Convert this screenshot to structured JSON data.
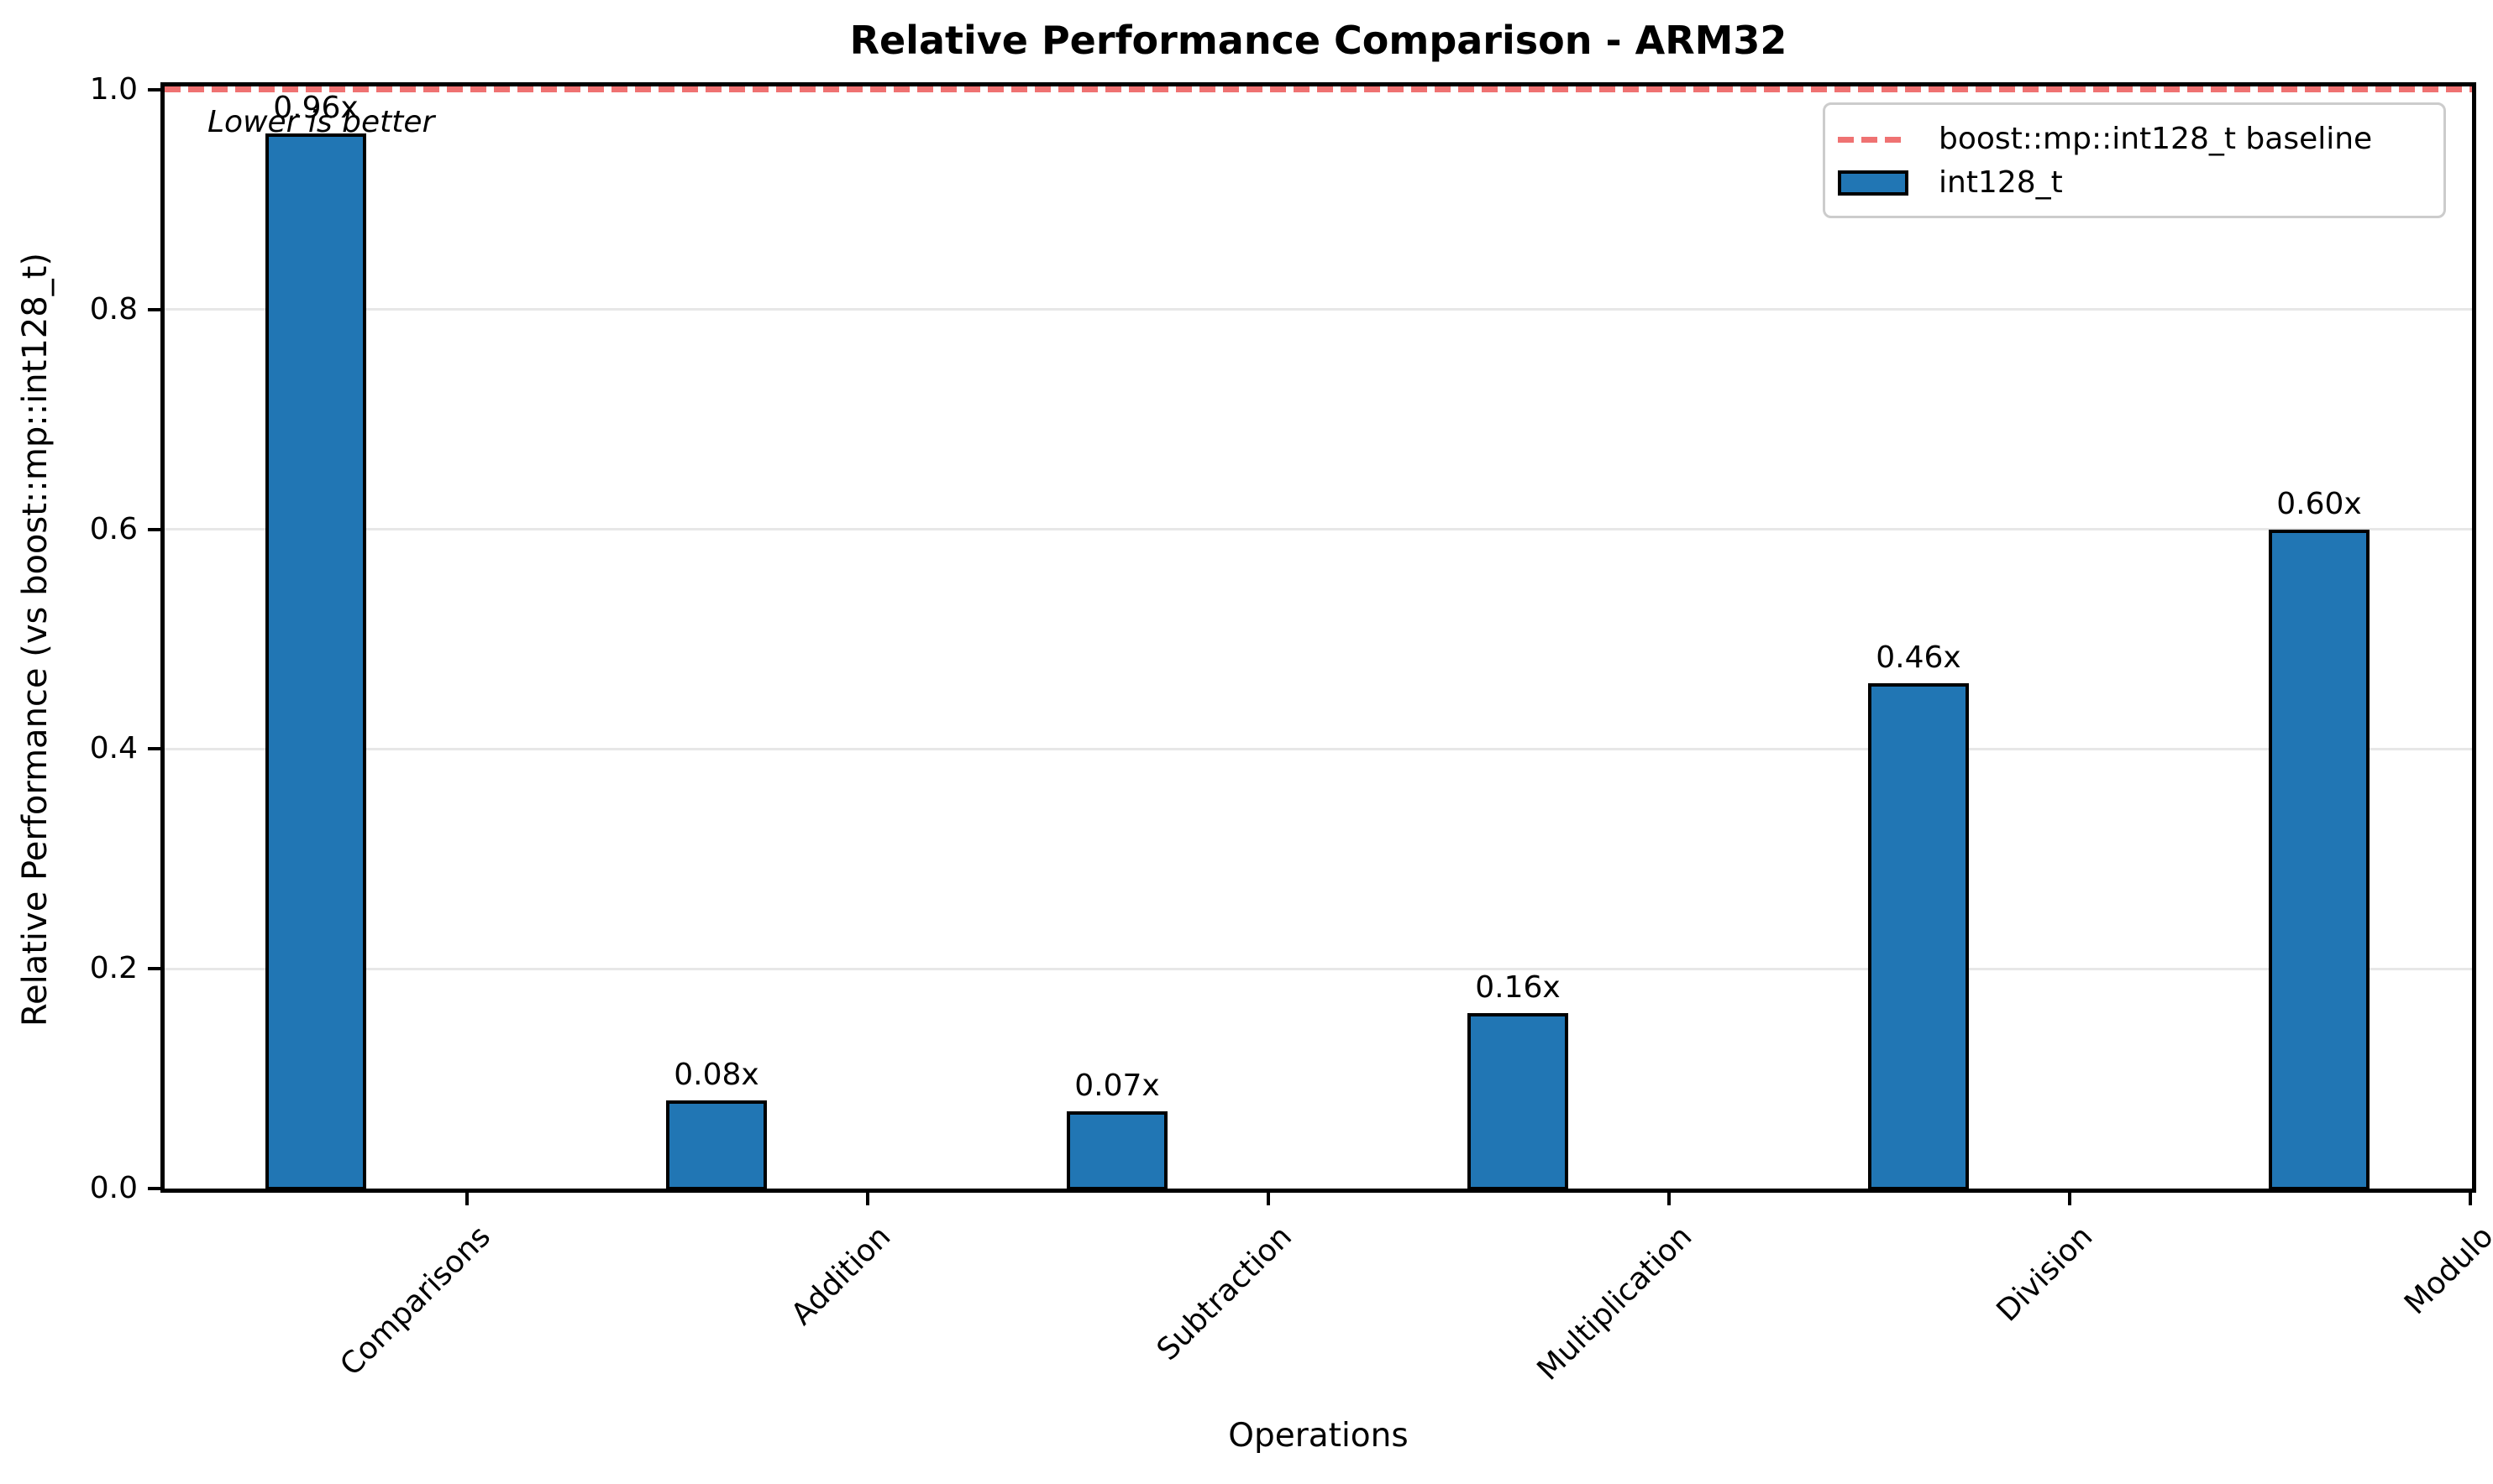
{
  "figure": {
    "title": "Relative Performance Comparison - ARM32",
    "annotation": "Lower is better",
    "xlabel": "Operations",
    "ylabel": "Relative Performance (vs boost::mp::int128_t)"
  },
  "legend": {
    "items": [
      {
        "label": "boost::mp::int128_t baseline",
        "marker": "dashed-line",
        "color": "#ef7272"
      },
      {
        "label": "int128_t",
        "marker": "rect",
        "color": "#2176b4"
      }
    ]
  },
  "chart_data": {
    "type": "bar",
    "title": "Relative Performance Comparison - ARM32",
    "xlabel": "Operations",
    "ylabel": "Relative Performance (vs boost::mp::int128_t)",
    "categories": [
      "Comparisons",
      "Addition",
      "Subtraction",
      "Multiplication",
      "Division",
      "Modulo"
    ],
    "series": [
      {
        "name": "int128_t",
        "values": [
          0.96,
          0.08,
          0.07,
          0.16,
          0.46,
          0.6
        ]
      }
    ],
    "bar_value_labels": [
      "0.96x",
      "0.08x",
      "0.07x",
      "0.16x",
      "0.46x",
      "0.60x"
    ],
    "baseline": {
      "value": 1.0,
      "label": "boost::mp::int128_t baseline",
      "style": "dashed"
    },
    "annotation": "Lower is better",
    "ylim": [
      0.0,
      1.0
    ],
    "ytick_labels": [
      "0.0",
      "0.2",
      "0.4",
      "0.6",
      "0.8",
      "1.0"
    ],
    "ytick_values": [
      0.0,
      0.2,
      0.4,
      0.6,
      0.8,
      1.0
    ],
    "grid": "horizontal",
    "legend_position": "upper right",
    "colors": {
      "bar_fill": "#2176b4",
      "bar_edge": "#000000",
      "baseline_line": "#ef7272",
      "gridline": "#e7e7e7",
      "text": "#000000",
      "background": "#ffffff"
    }
  }
}
